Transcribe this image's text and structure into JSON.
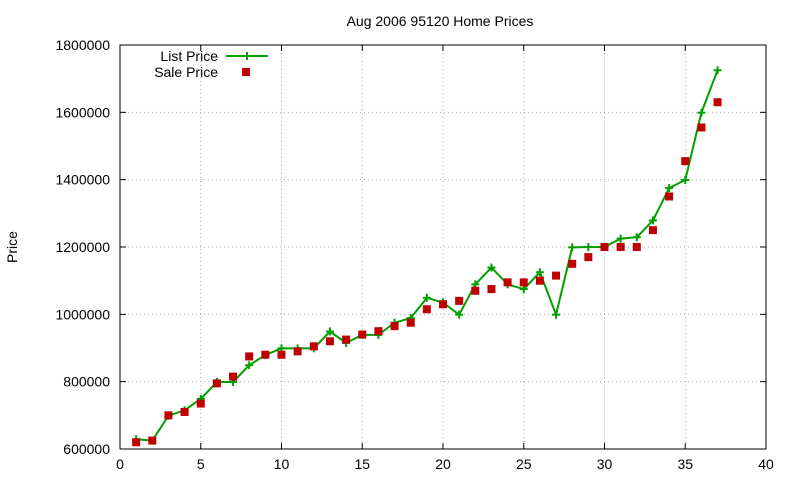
{
  "chart_data": {
    "type": "line",
    "title": "Aug 2006 95120 Home Prices",
    "xlabel": "",
    "ylabel": "Price",
    "xlim": [
      0,
      40
    ],
    "ylim": [
      600000,
      1800000
    ],
    "xticks": [
      0,
      5,
      10,
      15,
      20,
      25,
      30,
      35,
      40
    ],
    "yticks": [
      600000,
      800000,
      1000000,
      1200000,
      1400000,
      1600000,
      1800000
    ],
    "grid": true,
    "legend_position": "top-left",
    "series": [
      {
        "name": "List Price",
        "style": "line-with-plus-markers",
        "color": "#00a000",
        "x": [
          1,
          2,
          3,
          4,
          5,
          6,
          7,
          8,
          9,
          10,
          11,
          12,
          13,
          14,
          15,
          16,
          17,
          18,
          19,
          20,
          21,
          22,
          23,
          24,
          25,
          26,
          27,
          28,
          29,
          30,
          31,
          32,
          33,
          34,
          35,
          36,
          37
        ],
        "y": [
          629000,
          625000,
          699000,
          715000,
          749000,
          799000,
          799000,
          849000,
          879000,
          899000,
          899000,
          899000,
          949000,
          915000,
          939000,
          939000,
          975000,
          989000,
          1049000,
          1035000,
          999000,
          1089000,
          1139000,
          1089000,
          1075000,
          1125000,
          999000,
          1199000,
          1200000,
          1200000,
          1225000,
          1229000,
          1279000,
          1375000,
          1399000,
          1599000,
          1725000
        ]
      },
      {
        "name": "Sale Price",
        "style": "square-markers",
        "color": "#c00000",
        "x": [
          1,
          2,
          3,
          4,
          5,
          6,
          7,
          8,
          9,
          10,
          11,
          12,
          13,
          14,
          15,
          16,
          17,
          18,
          19,
          20,
          21,
          22,
          23,
          24,
          25,
          26,
          27,
          28,
          29,
          30,
          31,
          32,
          33,
          34,
          35,
          36,
          37
        ],
        "y": [
          620000,
          625000,
          700000,
          710000,
          735000,
          795000,
          815000,
          875000,
          880000,
          880000,
          890000,
          905000,
          920000,
          925000,
          940000,
          950000,
          965000,
          975000,
          1015000,
          1030000,
          1040000,
          1070000,
          1075000,
          1095000,
          1095000,
          1100000,
          1115000,
          1150000,
          1170000,
          1200000,
          1200000,
          1200000,
          1250000,
          1350000,
          1455000,
          1555000,
          1630000
        ]
      }
    ]
  }
}
